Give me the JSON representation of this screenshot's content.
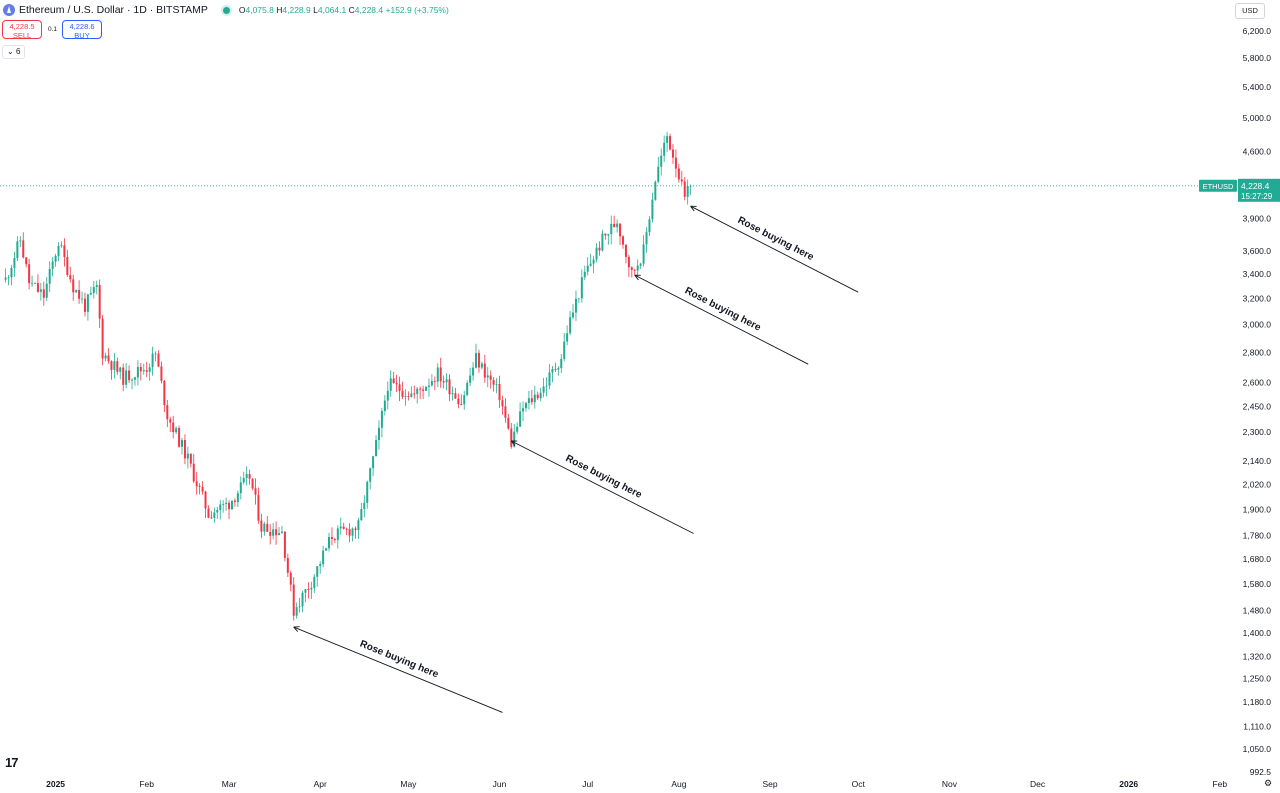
{
  "header": {
    "symbol_title": "Ethereum / U.S. Dollar · 1D · BITSTAMP",
    "ohlc": {
      "o_label": "O",
      "o": "4,075.8",
      "h_label": "H",
      "h": "4,228.9",
      "l_label": "L",
      "l": "4,064.1",
      "c_label": "C",
      "c": "4,228.4",
      "change": "+152.9 (+3.75%)"
    }
  },
  "trade": {
    "sell_price": "4,228.5",
    "sell_label": "SELL",
    "spread": "0.1",
    "buy_price": "4,228.6",
    "buy_label": "BUY"
  },
  "indicators_toggle": "6",
  "currency_button": "USD",
  "settings_icon": "gear-icon",
  "colors": {
    "up": "#22ab94",
    "down": "#f23645",
    "accent": "#2962ff",
    "price_line": "#22ab94"
  },
  "chart_data": {
    "type": "candlestick",
    "scale": "log",
    "ylim": [
      950,
      6500
    ],
    "x_ticks": [
      "2025",
      "Feb",
      "Mar",
      "Apr",
      "May",
      "Jun",
      "Jul",
      "Aug",
      "Sep",
      "Oct",
      "Nov",
      "Dec",
      "2026",
      "Feb"
    ],
    "y_ticks": [
      "6,200.0",
      "5,800.0",
      "5,400.0",
      "5,000.0",
      "4,600.0",
      "3,900.0",
      "3,600.0",
      "3,400.0",
      "3,200.0",
      "3,000.0",
      "2,800.0",
      "2,600.0",
      "2,450.0",
      "2,300.0",
      "2,140.0",
      "2,020.0",
      "1,900.0",
      "1,780.0",
      "1,680.0",
      "1,580.0",
      "1,480.0",
      "1,400.0",
      "1,320.0",
      "1,250.0",
      "1,180.0",
      "1,110.0",
      "1,050.0",
      "992.5"
    ],
    "last_price": {
      "symbol": "ETHUSD",
      "price": "4,228.4",
      "countdown": "15:27:29",
      "value": 4228.4
    },
    "price_path": [
      [
        "2025-01-01",
        3353
      ],
      [
        "2025-01-06",
        3700
      ],
      [
        "2025-01-09",
        3330
      ],
      [
        "2025-01-14",
        3220
      ],
      [
        "2025-01-19",
        3680
      ],
      [
        "2025-01-24",
        3300
      ],
      [
        "2025-01-28",
        3140
      ],
      [
        "2025-02-01",
        3290
      ],
      [
        "2025-02-03",
        2800
      ],
      [
        "2025-02-10",
        2630
      ],
      [
        "2025-02-18",
        2700
      ],
      [
        "2025-02-21",
        2790
      ],
      [
        "2025-02-25",
        2400
      ],
      [
        "2025-03-04",
        2150
      ],
      [
        "2025-03-11",
        1880
      ],
      [
        "2025-03-18",
        1930
      ],
      [
        "2025-03-25",
        2060
      ],
      [
        "2025-03-29",
        1820
      ],
      [
        "2025-04-05",
        1800
      ],
      [
        "2025-04-09",
        1480
      ],
      [
        "2025-04-15",
        1590
      ],
      [
        "2025-04-22",
        1780
      ],
      [
        "2025-05-01",
        1820
      ],
      [
        "2025-05-08",
        2300
      ],
      [
        "2025-05-11",
        2590
      ],
      [
        "2025-05-20",
        2520
      ],
      [
        "2025-05-28",
        2660
      ],
      [
        "2025-06-05",
        2480
      ],
      [
        "2025-06-10",
        2760
      ],
      [
        "2025-06-18",
        2520
      ],
      [
        "2025-06-22",
        2240
      ],
      [
        "2025-06-26",
        2440
      ],
      [
        "2025-07-03",
        2570
      ],
      [
        "2025-07-09",
        2770
      ],
      [
        "2025-07-11",
        2960
      ],
      [
        "2025-07-17",
        3400
      ],
      [
        "2025-07-23",
        3700
      ],
      [
        "2025-07-28",
        3880
      ],
      [
        "2025-08-02",
        3400
      ],
      [
        "2025-08-06",
        3600
      ],
      [
        "2025-08-10",
        4300
      ],
      [
        "2025-08-14",
        4780
      ],
      [
        "2025-08-17",
        4470
      ],
      [
        "2025-08-20",
        4080
      ],
      [
        "2025-08-22",
        4228
      ]
    ]
  },
  "annotations": [
    {
      "text": "Rose buying here",
      "at_date": "2025-04-09",
      "at_price": 1420,
      "to_date": "2025-06-19",
      "to_price": 1150
    },
    {
      "text": "Rose buying here",
      "at_date": "2025-06-22",
      "at_price": 2250,
      "to_date": "2025-08-23",
      "to_price": 1790
    },
    {
      "text": "Rose buying here",
      "at_date": "2025-08-03",
      "at_price": 3390,
      "to_date": "2025-10-01",
      "to_price": 2720
    },
    {
      "text": "Rose buying here",
      "at_date": "2025-08-22",
      "at_price": 4020,
      "to_date": "2025-10-18",
      "to_price": 3250
    }
  ]
}
